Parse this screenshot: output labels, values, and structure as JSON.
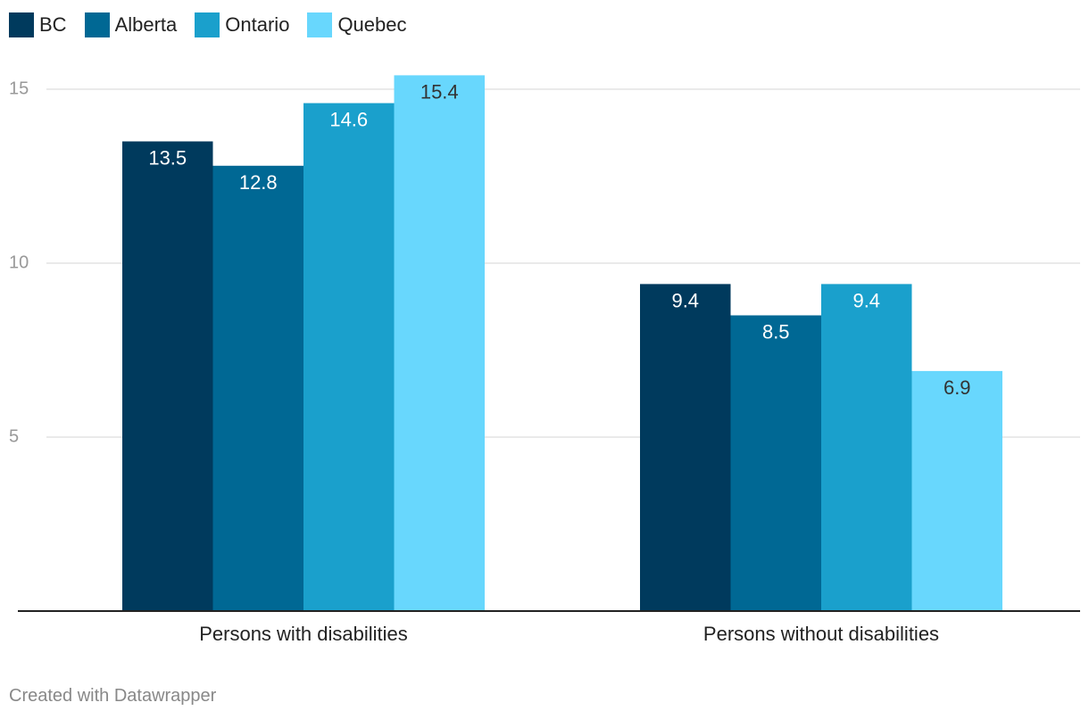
{
  "chart_data": {
    "type": "bar",
    "title": "",
    "xlabel": "",
    "ylabel": "",
    "categories": [
      "Persons with disabilities",
      "Persons without disabilities"
    ],
    "series": [
      {
        "name": "BC",
        "color": "#003a5d",
        "values": [
          13.5,
          9.4
        ]
      },
      {
        "name": "Alberta",
        "color": "#006894",
        "values": [
          12.8,
          8.5
        ]
      },
      {
        "name": "Ontario",
        "color": "#1aa0cc",
        "values": [
          14.6,
          9.4
        ]
      },
      {
        "name": "Quebec",
        "color": "#68d7fd",
        "values": [
          15.4,
          6.9
        ]
      }
    ],
    "yticks": [
      5,
      10,
      15
    ],
    "ylim": [
      0,
      15.4
    ],
    "grid": true,
    "legend": "top-left"
  },
  "footer": {
    "credit": "Created with Datawrapper"
  }
}
